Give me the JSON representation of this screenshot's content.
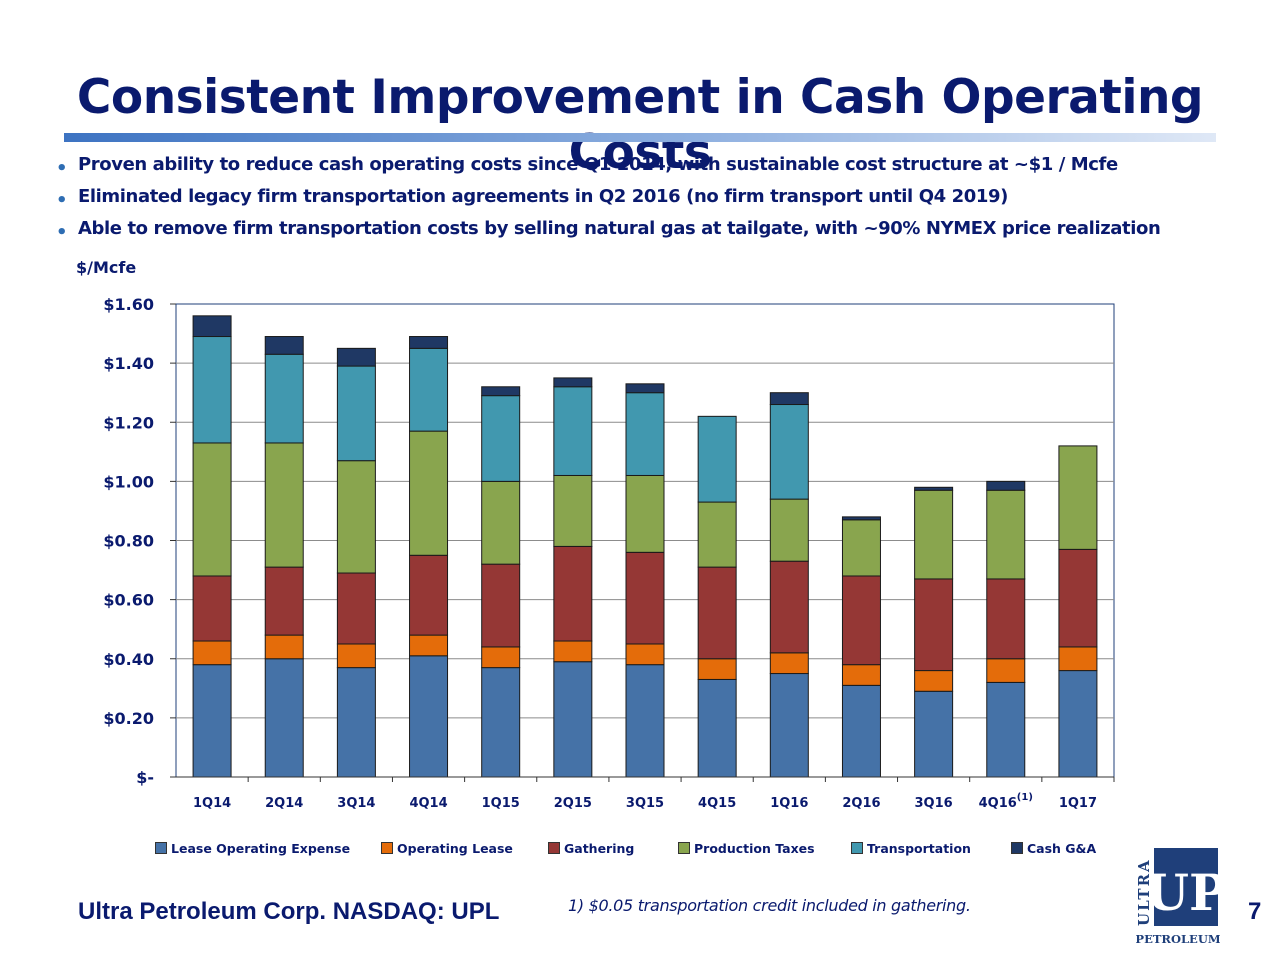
{
  "slide": {
    "title": "Consistent Improvement in Cash Operating Costs",
    "bullets": [
      "Proven ability to reduce cash operating costs since Q1 2014, with sustainable cost structure at ~$1 / Mcfe",
      "Eliminated legacy firm transportation agreements in Q2 2016 (no firm transport until Q4 2019)",
      "Able to remove  firm transportation costs by selling natural gas at tailgate, with ~90% NYMEX price realization"
    ],
    "unit_label": "$/Mcfe",
    "footer_company": "Ultra Petroleum Corp. NASDAQ: UPL",
    "footnote": "1)  $0.05 transportation credit included in gathering.",
    "page_number": "7",
    "logo": {
      "side_text": "ULTRA",
      "main_text": "UP",
      "bottom_text": "PETROLEUM"
    }
  },
  "chart_data": {
    "type": "bar",
    "stacked": true,
    "categories": [
      "1Q14",
      "2Q14",
      "3Q14",
      "4Q14",
      "1Q15",
      "2Q15",
      "3Q15",
      "4Q15",
      "1Q16",
      "2Q16",
      "3Q16",
      "4Q16",
      "1Q17"
    ],
    "category_superscripts": {
      "4Q16": "(1)"
    },
    "ylim": [
      0,
      1.6
    ],
    "yticks": [
      0,
      0.2,
      0.4,
      0.6,
      0.8,
      1.0,
      1.2,
      1.4,
      1.6
    ],
    "ytick_labels": [
      "$-",
      "$0.20",
      "$0.40",
      "$0.60",
      "$0.80",
      "$1.00",
      "$1.20",
      "$1.40",
      "$1.60"
    ],
    "grid": true,
    "legend_position": "bottom",
    "series": [
      {
        "name": "Lease Operating Expense",
        "color": "#4572a7",
        "values": [
          0.38,
          0.4,
          0.37,
          0.41,
          0.37,
          0.39,
          0.38,
          0.33,
          0.35,
          0.31,
          0.29,
          0.32,
          0.36
        ]
      },
      {
        "name": "Operating Lease",
        "color": "#e46c0a",
        "values": [
          0.08,
          0.08,
          0.08,
          0.07,
          0.07,
          0.07,
          0.07,
          0.07,
          0.07,
          0.07,
          0.07,
          0.08,
          0.08
        ]
      },
      {
        "name": "Gathering",
        "color": "#953735",
        "values": [
          0.22,
          0.23,
          0.24,
          0.27,
          0.28,
          0.32,
          0.31,
          0.31,
          0.31,
          0.3,
          0.31,
          0.27,
          0.33
        ]
      },
      {
        "name": "Production Taxes",
        "color": "#89a54e",
        "values": [
          0.45,
          0.42,
          0.38,
          0.42,
          0.28,
          0.24,
          0.26,
          0.22,
          0.21,
          0.19,
          0.3,
          0.3,
          0.35
        ]
      },
      {
        "name": "Transportation",
        "color": "#4198af",
        "values": [
          0.36,
          0.3,
          0.32,
          0.28,
          0.29,
          0.3,
          0.28,
          0.29,
          0.32,
          0.0,
          0.0,
          0.0,
          0.0
        ]
      },
      {
        "name": "Cash G&A",
        "color": "#1f3864",
        "values": [
          0.07,
          0.06,
          0.06,
          0.04,
          0.03,
          0.03,
          0.03,
          0.0,
          0.04,
          0.01,
          0.01,
          0.03,
          0.0
        ]
      }
    ]
  }
}
